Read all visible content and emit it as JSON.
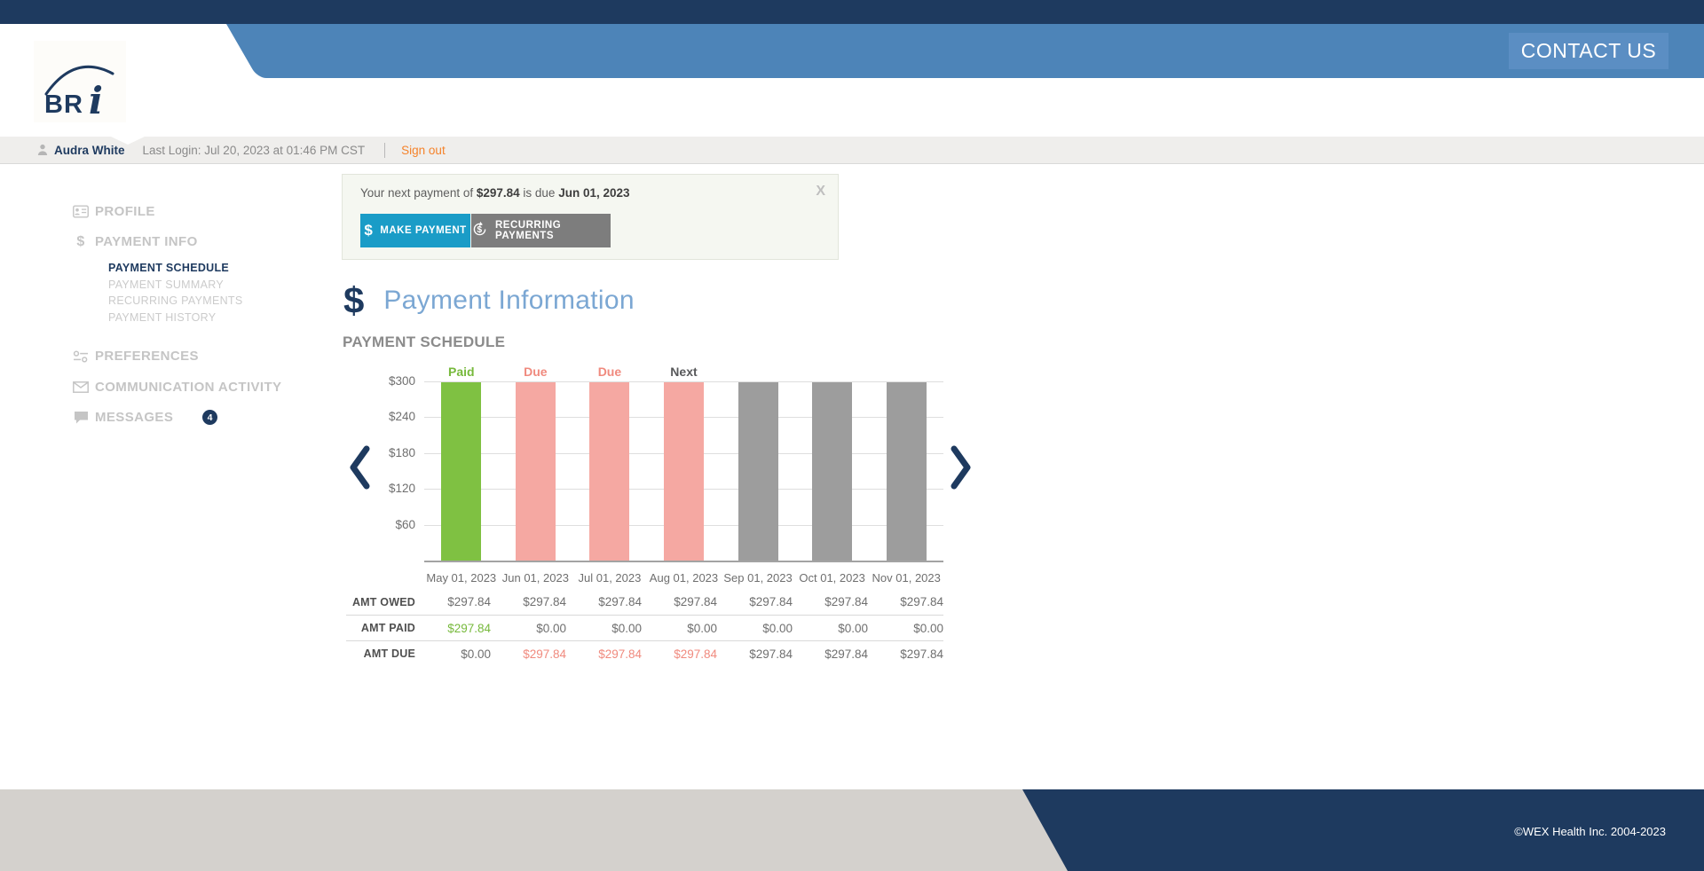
{
  "header": {
    "logo_text": "BR",
    "logo_italic": "i",
    "contact_us_label": "CONTACT US"
  },
  "user_bar": {
    "user_name": "Audra White",
    "last_login": "Last Login: Jul 20, 2023 at 01:46 PM CST",
    "sign_out_label": "Sign out"
  },
  "sidebar": {
    "items": [
      {
        "label": "PROFILE",
        "icon": "id-card-icon"
      },
      {
        "label": "PAYMENT INFO",
        "icon": "dollar-icon",
        "children": [
          {
            "label": "PAYMENT SCHEDULE",
            "active": true
          },
          {
            "label": "PAYMENT SUMMARY",
            "active": false
          },
          {
            "label": "RECURRING PAYMENTS",
            "active": false
          },
          {
            "label": "PAYMENT HISTORY",
            "active": false
          }
        ]
      },
      {
        "label": "PREFERENCES",
        "icon": "sliders-icon"
      },
      {
        "label": "COMMUNICATION ACTIVITY",
        "icon": "envelope-icon"
      },
      {
        "label": "MESSAGES",
        "icon": "chat-bubble-icon",
        "badge": "4"
      }
    ]
  },
  "notification": {
    "message_prefix": "Your next payment of ",
    "amount": "$297.84",
    "message_middle": " is due ",
    "due_date": "Jun 01, 2023",
    "close_label": "X",
    "make_payment_label": "MAKE PAYMENT",
    "recurring_payments_label": "RECURRING PAYMENTS",
    "dollar_glyph": "$"
  },
  "main": {
    "page_title": "Payment Information",
    "title_dollar_glyph": "$",
    "section_title": "PAYMENT SCHEDULE"
  },
  "chart_data": {
    "type": "bar",
    "title": "PAYMENT SCHEDULE",
    "categories": [
      "May 01, 2023",
      "Jun 01, 2023",
      "Jul 01, 2023",
      "Aug 01, 2023",
      "Sep 01, 2023",
      "Oct 01, 2023",
      "Nov 01, 2023"
    ],
    "values": [
      297.84,
      297.84,
      297.84,
      297.84,
      297.84,
      297.84,
      297.84
    ],
    "bar_states": [
      "paid",
      "due",
      "due",
      "next",
      "upcoming",
      "upcoming",
      "upcoming"
    ],
    "bar_labels": [
      "Paid",
      "Due",
      "Due",
      "Next",
      "",
      "",
      ""
    ],
    "y_ticks": [
      {
        "label": "$300",
        "value": 300
      },
      {
        "label": "$240",
        "value": 240
      },
      {
        "label": "$180",
        "value": 180
      },
      {
        "label": "$120",
        "value": 120
      },
      {
        "label": "$60",
        "value": 60
      }
    ],
    "ylim": [
      0,
      300
    ],
    "grid": true,
    "legend_position": "none",
    "colors": {
      "paid": "#7fc142",
      "due": "#f5a8a2",
      "next": "#f5a8a2",
      "upcoming": "#9d9d9d"
    },
    "label_colors": {
      "paid": "#77b93c",
      "due": "#f08a7e",
      "next": "#58595b"
    },
    "table": {
      "rows": [
        {
          "label": "AMT OWED",
          "cells": [
            {
              "text": "$297.84",
              "state": "default"
            },
            {
              "text": "$297.84",
              "state": "default"
            },
            {
              "text": "$297.84",
              "state": "default"
            },
            {
              "text": "$297.84",
              "state": "default"
            },
            {
              "text": "$297.84",
              "state": "default"
            },
            {
              "text": "$297.84",
              "state": "default"
            },
            {
              "text": "$297.84",
              "state": "default"
            }
          ]
        },
        {
          "label": "AMT PAID",
          "cells": [
            {
              "text": "$297.84",
              "state": "paid"
            },
            {
              "text": "$0.00",
              "state": "default"
            },
            {
              "text": "$0.00",
              "state": "default"
            },
            {
              "text": "$0.00",
              "state": "default"
            },
            {
              "text": "$0.00",
              "state": "default"
            },
            {
              "text": "$0.00",
              "state": "default"
            },
            {
              "text": "$0.00",
              "state": "default"
            }
          ]
        },
        {
          "label": "AMT DUE",
          "cells": [
            {
              "text": "$0.00",
              "state": "default"
            },
            {
              "text": "$297.84",
              "state": "due"
            },
            {
              "text": "$297.84",
              "state": "due"
            },
            {
              "text": "$297.84",
              "state": "due"
            },
            {
              "text": "$297.84",
              "state": "default"
            },
            {
              "text": "$297.84",
              "state": "default"
            },
            {
              "text": "$297.84",
              "state": "default"
            }
          ]
        }
      ]
    }
  },
  "footer": {
    "copyright": "©WEX Health Inc. 2004-2023"
  },
  "colors": {
    "navy": "#1e3a5f",
    "band_blue": "#4d84b8",
    "cyan_button": "#1a9cc7",
    "orange_link": "#f5832b"
  }
}
